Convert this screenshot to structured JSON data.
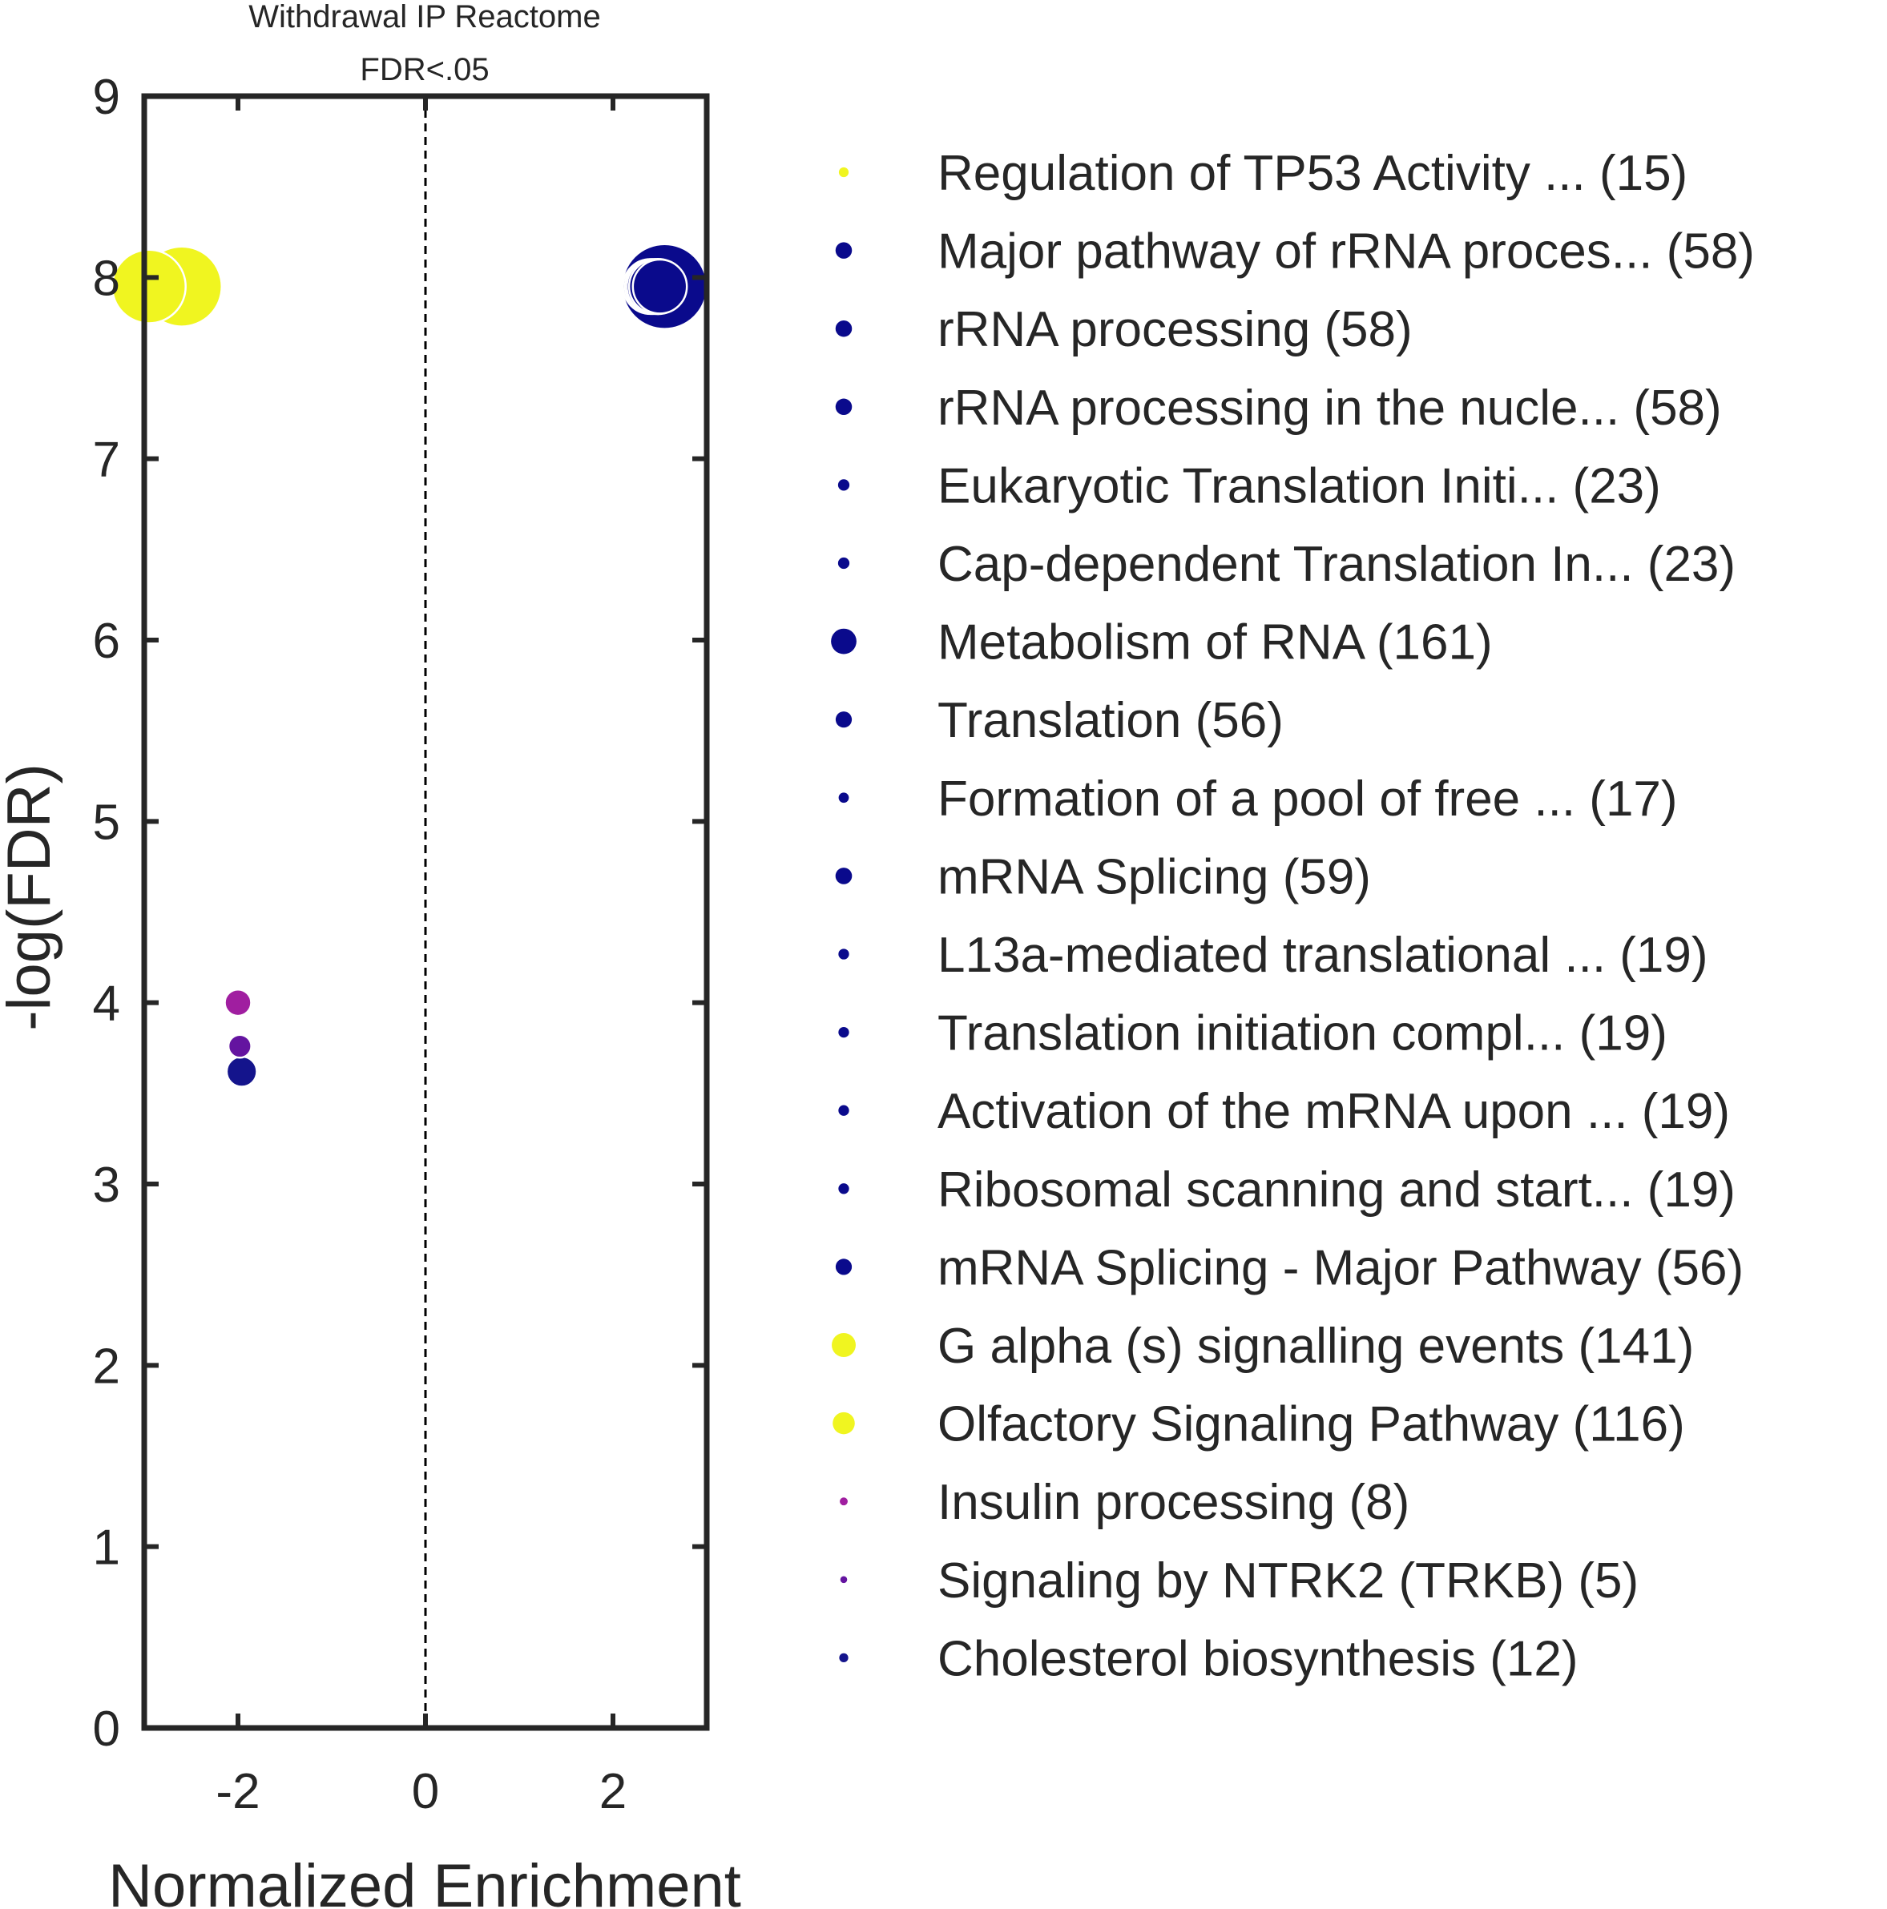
{
  "chart_data": {
    "type": "scatter",
    "title": [
      "Withdrawal IP Reactome",
      "FDR<.05"
    ],
    "xlabel": "Normalized Enrichment",
    "ylabel": "-log(FDR)",
    "xlim": [
      -3.0,
      3.0
    ],
    "ylim": [
      0,
      9
    ],
    "xticks": [
      -2,
      0,
      2
    ],
    "xtick_labels": [
      "-2",
      "0",
      "2"
    ],
    "yticks": [
      0,
      1,
      2,
      3,
      4,
      5,
      6,
      7,
      8,
      9
    ],
    "ytick_labels": [
      "0",
      "1",
      "2",
      "3",
      "4",
      "5",
      "6",
      "7",
      "8",
      "9"
    ],
    "reference_line_x": 0,
    "grid": false,
    "legend_position": "right-outside",
    "color_scale": {
      "low": "#0a0a8c",
      "mid": "#8c14b4",
      "high": "#f0f520"
    },
    "series": [
      {
        "label": "Regulation of TP53 Activity ... (15)",
        "size": 15,
        "x": null,
        "y": null,
        "color": "#f0f520"
      },
      {
        "label": "Major pathway of rRNA proces... (58)",
        "size": 58,
        "x": 2.4,
        "y": 7.95,
        "color": "#0a0a8c"
      },
      {
        "label": "rRNA processing (58)",
        "size": 58,
        "x": 2.42,
        "y": 7.95,
        "color": "#0a0a8c"
      },
      {
        "label": "rRNA processing in the nucle... (58)",
        "size": 58,
        "x": 2.44,
        "y": 7.95,
        "color": "#0a0a8c"
      },
      {
        "label": "Eukaryotic Translation Initi... (23)",
        "size": 23,
        "x": null,
        "y": null,
        "color": "#0a0a8c"
      },
      {
        "label": "Cap-dependent Translation In... (23)",
        "size": 23,
        "x": null,
        "y": null,
        "color": "#0a0a8c"
      },
      {
        "label": "Metabolism of RNA (161)",
        "size": 161,
        "x": 2.55,
        "y": 7.95,
        "color": "#0a0a8c"
      },
      {
        "label": "Translation (56)",
        "size": 56,
        "x": 2.46,
        "y": 7.95,
        "color": "#0a0a8c"
      },
      {
        "label": "Formation of a pool of free ... (17)",
        "size": 17,
        "x": null,
        "y": null,
        "color": "#0a0a8c"
      },
      {
        "label": "mRNA Splicing (59)",
        "size": 59,
        "x": 2.48,
        "y": 7.95,
        "color": "#0a0a8c"
      },
      {
        "label": "L13a-mediated translational ... (19)",
        "size": 19,
        "x": null,
        "y": null,
        "color": "#0a0a8c"
      },
      {
        "label": "Translation initiation compl... (19)",
        "size": 19,
        "x": null,
        "y": null,
        "color": "#0a0a8c"
      },
      {
        "label": "Activation of the mRNA upon ... (19)",
        "size": 19,
        "x": null,
        "y": null,
        "color": "#0a0a8c"
      },
      {
        "label": "Ribosomal scanning and start... (19)",
        "size": 19,
        "x": null,
        "y": null,
        "color": "#0a0a8c"
      },
      {
        "label": "mRNA Splicing - Major Pathway (56)",
        "size": 56,
        "x": 2.5,
        "y": 7.95,
        "color": "#0a0a8c"
      },
      {
        "label": "G alpha (s) signalling events (141)",
        "size": 141,
        "x": -2.6,
        "y": 7.95,
        "color": "#f0f520"
      },
      {
        "label": "Olfactory Signaling Pathway (116)",
        "size": 116,
        "x": -2.95,
        "y": 7.95,
        "color": "#f0f520"
      },
      {
        "label": "Insulin processing (8)",
        "size": 8,
        "x": -2.0,
        "y": 4.0,
        "color": "#a01ea0"
      },
      {
        "label": "Signaling by NTRK2 (TRKB) (5)",
        "size": 5,
        "x": -1.98,
        "y": 3.76,
        "color": "#6414a0"
      },
      {
        "label": "Cholesterol biosynthesis (12)",
        "size": 12,
        "x": -1.96,
        "y": 3.62,
        "color": "#14148c"
      }
    ]
  }
}
